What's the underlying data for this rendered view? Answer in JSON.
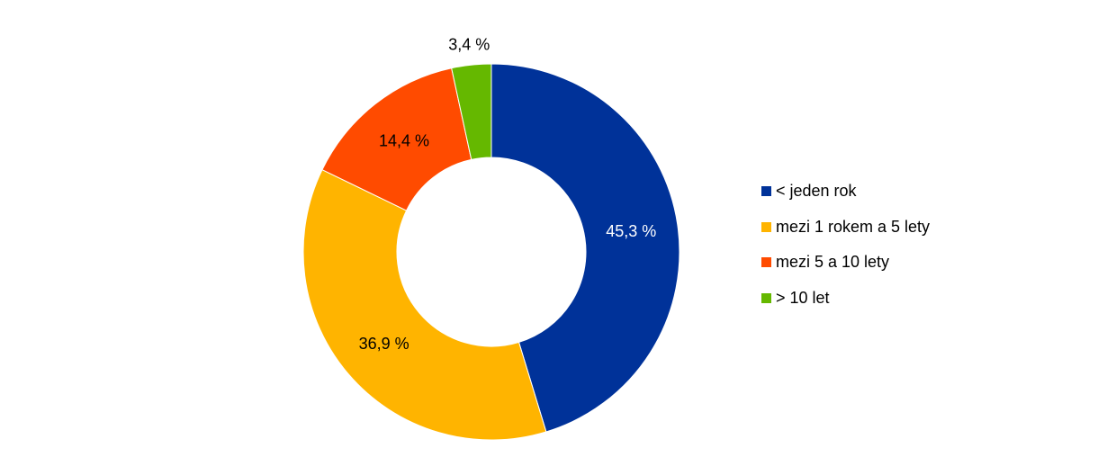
{
  "chart_data": {
    "type": "pie",
    "donut": true,
    "categories": [
      "< jeden rok",
      "mezi 1 rokem a 5 lety",
      "mezi 5 a 10 lety",
      "> 10 let"
    ],
    "values": [
      45.3,
      36.9,
      14.4,
      3.4
    ],
    "data_labels": [
      "45,3 %",
      "36,9 %",
      "14,4 %",
      "3,4 %"
    ],
    "colors": [
      "#003299",
      "#FFB400",
      "#FF4B00",
      "#65B800"
    ],
    "label_colors": [
      "#ffffff",
      "#000000",
      "#000000",
      "#000000"
    ],
    "legend_position": "right"
  }
}
